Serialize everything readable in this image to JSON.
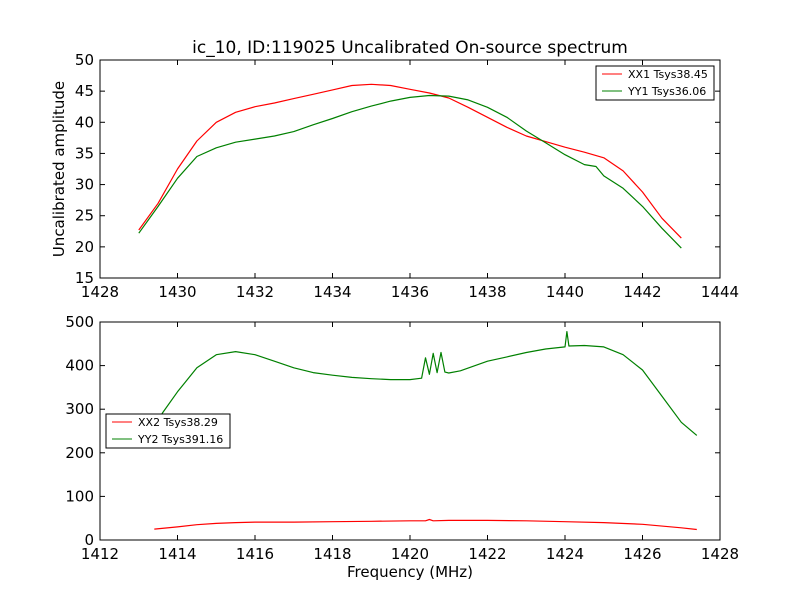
{
  "title": "ic_10, ID:119025 Uncalibrated On-source spectrum",
  "colors": {
    "red": "#ff0000",
    "green": "#008000"
  },
  "chart_data": [
    {
      "type": "line",
      "ylabel": "Uncalibrated amplitude",
      "xlabel": "",
      "xlim": [
        1428,
        1444
      ],
      "ylim": [
        15,
        50
      ],
      "xticks": [
        "1428",
        "1430",
        "1432",
        "1434",
        "1436",
        "1438",
        "1440",
        "1442",
        "1444"
      ],
      "yticks": [
        "15",
        "20",
        "25",
        "30",
        "35",
        "40",
        "45",
        "50"
      ],
      "legend_position": "top-right",
      "series": [
        {
          "name": "XX1 Tsys38.45",
          "color": "#ff0000",
          "points": [
            [
              1429.0,
              22.7
            ],
            [
              1429.5,
              27.0
            ],
            [
              1430.0,
              32.5
            ],
            [
              1430.5,
              37.0
            ],
            [
              1431.0,
              40.0
            ],
            [
              1431.5,
              41.6
            ],
            [
              1432.0,
              42.5
            ],
            [
              1432.5,
              43.1
            ],
            [
              1433.0,
              43.8
            ],
            [
              1433.5,
              44.5
            ],
            [
              1434.0,
              45.2
            ],
            [
              1434.5,
              45.9
            ],
            [
              1435.0,
              46.1
            ],
            [
              1435.5,
              45.9
            ],
            [
              1436.0,
              45.3
            ],
            [
              1436.5,
              44.7
            ],
            [
              1437.0,
              43.9
            ],
            [
              1437.5,
              42.4
            ],
            [
              1438.0,
              40.8
            ],
            [
              1438.5,
              39.2
            ],
            [
              1439.0,
              37.8
            ],
            [
              1439.5,
              36.9
            ],
            [
              1440.0,
              36.0
            ],
            [
              1440.5,
              35.2
            ],
            [
              1441.0,
              34.3
            ],
            [
              1441.5,
              32.2
            ],
            [
              1442.0,
              28.8
            ],
            [
              1442.5,
              24.6
            ],
            [
              1443.0,
              21.4
            ]
          ]
        },
        {
          "name": "YY1 Tsys36.06",
          "color": "#008000",
          "points": [
            [
              1429.0,
              22.2
            ],
            [
              1429.5,
              26.5
            ],
            [
              1430.0,
              31.0
            ],
            [
              1430.5,
              34.5
            ],
            [
              1431.0,
              35.9
            ],
            [
              1431.5,
              36.8
            ],
            [
              1432.0,
              37.3
            ],
            [
              1432.5,
              37.8
            ],
            [
              1433.0,
              38.5
            ],
            [
              1433.5,
              39.6
            ],
            [
              1434.0,
              40.6
            ],
            [
              1434.5,
              41.7
            ],
            [
              1435.0,
              42.6
            ],
            [
              1435.5,
              43.4
            ],
            [
              1436.0,
              44.0
            ],
            [
              1436.5,
              44.3
            ],
            [
              1437.0,
              44.2
            ],
            [
              1437.5,
              43.6
            ],
            [
              1438.0,
              42.4
            ],
            [
              1438.5,
              40.8
            ],
            [
              1439.0,
              38.6
            ],
            [
              1439.5,
              36.7
            ],
            [
              1440.0,
              34.8
            ],
            [
              1440.5,
              33.2
            ],
            [
              1440.8,
              32.9
            ],
            [
              1441.0,
              31.4
            ],
            [
              1441.5,
              29.4
            ],
            [
              1442.0,
              26.5
            ],
            [
              1442.5,
              23.0
            ],
            [
              1443.0,
              19.8
            ]
          ]
        }
      ]
    },
    {
      "type": "line",
      "ylabel": "",
      "xlabel": "Frequency (MHz)",
      "xlim": [
        1412,
        1428
      ],
      "ylim": [
        0,
        500
      ],
      "xticks": [
        "1412",
        "1414",
        "1416",
        "1418",
        "1420",
        "1422",
        "1424",
        "1426",
        "1428"
      ],
      "yticks": [
        "0",
        "100",
        "200",
        "300",
        "400",
        "500"
      ],
      "legend_position": "center-left",
      "series": [
        {
          "name": "XX2 Tsys38.29",
          "color": "#ff0000",
          "points": [
            [
              1413.4,
              25
            ],
            [
              1414.0,
              30
            ],
            [
              1414.5,
              35
            ],
            [
              1415.0,
              38
            ],
            [
              1415.5,
              40
            ],
            [
              1416.0,
              41
            ],
            [
              1417.0,
              41
            ],
            [
              1418.0,
              42
            ],
            [
              1419.0,
              43
            ],
            [
              1420.0,
              44
            ],
            [
              1420.4,
              44
            ],
            [
              1420.5,
              47
            ],
            [
              1420.6,
              44
            ],
            [
              1421.0,
              45
            ],
            [
              1422.0,
              45
            ],
            [
              1423.0,
              44
            ],
            [
              1424.0,
              42
            ],
            [
              1425.0,
              40
            ],
            [
              1426.0,
              36
            ],
            [
              1427.0,
              28
            ],
            [
              1427.4,
              24
            ]
          ]
        },
        {
          "name": "YY2 Tsys391.16",
          "color": "#008000",
          "points": [
            [
              1413.6,
              290
            ],
            [
              1414.0,
              340
            ],
            [
              1414.5,
              395
            ],
            [
              1415.0,
              425
            ],
            [
              1415.5,
              432
            ],
            [
              1416.0,
              425
            ],
            [
              1416.5,
              410
            ],
            [
              1417.0,
              395
            ],
            [
              1417.5,
              384
            ],
            [
              1418.0,
              378
            ],
            [
              1418.5,
              373
            ],
            [
              1419.0,
              370
            ],
            [
              1419.5,
              368
            ],
            [
              1420.0,
              368
            ],
            [
              1420.3,
              371
            ],
            [
              1420.4,
              418
            ],
            [
              1420.5,
              380
            ],
            [
              1420.6,
              428
            ],
            [
              1420.7,
              384
            ],
            [
              1420.8,
              430
            ],
            [
              1420.9,
              385
            ],
            [
              1421.0,
              383
            ],
            [
              1421.3,
              388
            ],
            [
              1422.0,
              410
            ],
            [
              1422.5,
              420
            ],
            [
              1423.0,
              430
            ],
            [
              1423.5,
              438
            ],
            [
              1424.0,
              443
            ],
            [
              1424.05,
              478
            ],
            [
              1424.1,
              445
            ],
            [
              1424.5,
              446
            ],
            [
              1425.0,
              443
            ],
            [
              1425.5,
              425
            ],
            [
              1426.0,
              390
            ],
            [
              1426.5,
              330
            ],
            [
              1427.0,
              270
            ],
            [
              1427.4,
              240
            ]
          ]
        }
      ]
    }
  ]
}
